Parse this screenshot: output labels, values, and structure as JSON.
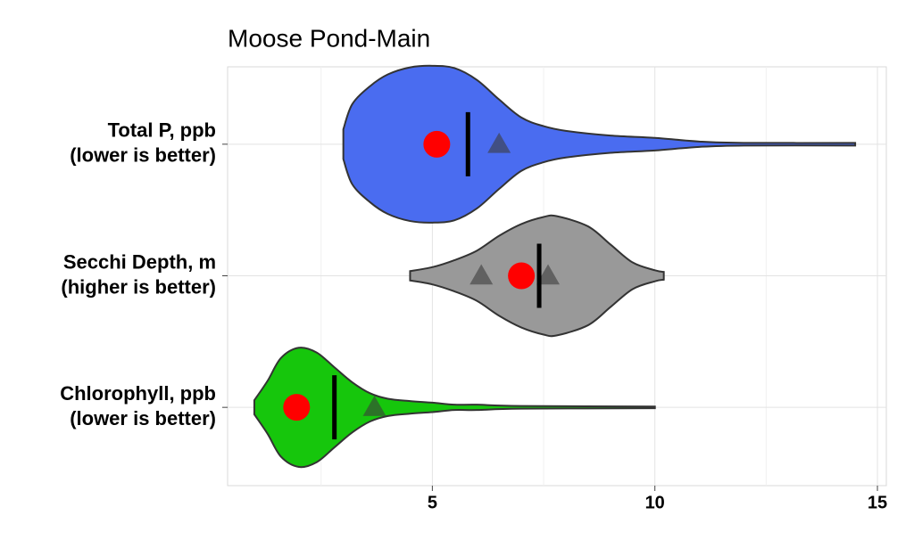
{
  "chart_data": {
    "type": "violin",
    "title": "Moose Pond-Main",
    "categories": [
      "Total P, ppb",
      "Secchi Depth, m",
      "Chlorophyll, ppb"
    ],
    "category_notes": [
      "(lower is better)",
      "(higher is better)",
      "(lower is better)"
    ],
    "xlim": [
      0.4,
      15.2
    ],
    "xticks": [
      5,
      10,
      15
    ],
    "xticks_minor": [
      2.5,
      7.5,
      12.5
    ],
    "grid": true,
    "dot_color": "#ff0000",
    "median_color": "#000000",
    "triangle_color": "#3c3c3c",
    "violins": [
      {
        "color": "#4a6cf0",
        "density_x": [
          3.0,
          3.2,
          3.6,
          4.0,
          4.5,
          5.0,
          5.5,
          6.0,
          6.5,
          7.0,
          7.5,
          8.0,
          9.0,
          10.0,
          11.0,
          12.0,
          14.5
        ],
        "density_width": [
          0.19,
          0.51,
          0.74,
          0.89,
          0.98,
          1.0,
          0.97,
          0.82,
          0.57,
          0.34,
          0.23,
          0.17,
          0.11,
          0.08,
          0.034,
          0.017,
          0.017
        ],
        "dot": 5.1,
        "median": 5.8,
        "triangles": [
          6.5
        ]
      },
      {
        "color": "#999999",
        "density_x": [
          4.5,
          5.0,
          5.5,
          6.0,
          6.5,
          7.0,
          7.5,
          7.8,
          8.5,
          9.0,
          9.5,
          10.0,
          10.2
        ],
        "density_width": [
          0.06,
          0.11,
          0.2,
          0.32,
          0.51,
          0.66,
          0.75,
          0.76,
          0.63,
          0.4,
          0.17,
          0.07,
          0.05
        ],
        "dot": 7.0,
        "median": 7.4,
        "triangles": [
          6.1,
          7.6
        ]
      },
      {
        "color": "#16c60c",
        "density_x": [
          1.0,
          1.3,
          1.6,
          2.0,
          2.4,
          2.8,
          3.2,
          3.6,
          4.0,
          4.5,
          5.0,
          5.5,
          6.0,
          7.0,
          10.0
        ],
        "density_width": [
          0.09,
          0.34,
          0.63,
          0.76,
          0.7,
          0.51,
          0.32,
          0.18,
          0.11,
          0.08,
          0.06,
          0.034,
          0.034,
          0.017,
          0.011
        ],
        "dot": 1.95,
        "median": 2.8,
        "triangles": [
          3.7
        ]
      }
    ]
  }
}
